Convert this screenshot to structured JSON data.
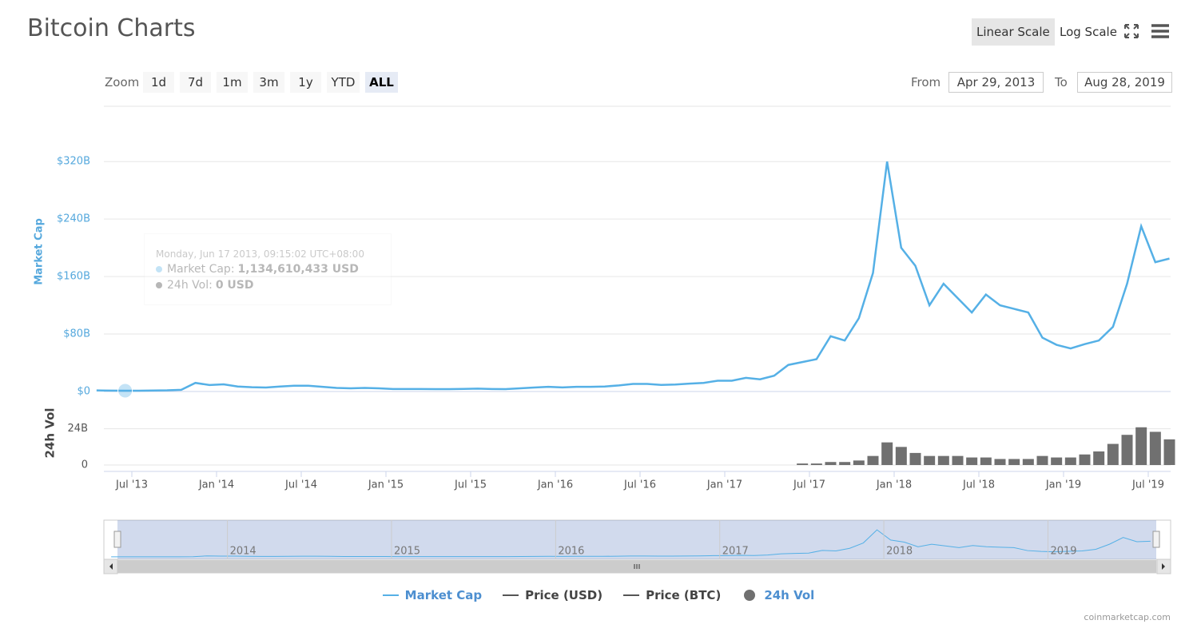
{
  "chart_data": {
    "type": "line",
    "title": "Bitcoin Charts",
    "x": [
      "2013-04",
      "2013-05",
      "2013-06",
      "2013-07",
      "2013-08",
      "2013-09",
      "2013-10",
      "2013-11",
      "2013-12",
      "2014-01",
      "2014-02",
      "2014-03",
      "2014-04",
      "2014-05",
      "2014-06",
      "2014-07",
      "2014-08",
      "2014-09",
      "2014-10",
      "2014-11",
      "2014-12",
      "2015-01",
      "2015-02",
      "2015-03",
      "2015-04",
      "2015-05",
      "2015-06",
      "2015-07",
      "2015-08",
      "2015-09",
      "2015-10",
      "2015-11",
      "2015-12",
      "2016-01",
      "2016-02",
      "2016-03",
      "2016-04",
      "2016-05",
      "2016-06",
      "2016-07",
      "2016-08",
      "2016-09",
      "2016-10",
      "2016-11",
      "2016-12",
      "2017-01",
      "2017-02",
      "2017-03",
      "2017-04",
      "2017-05",
      "2017-06",
      "2017-07",
      "2017-08",
      "2017-09",
      "2017-10",
      "2017-11",
      "2017-12",
      "2018-01",
      "2018-02",
      "2018-03",
      "2018-04",
      "2018-05",
      "2018-06",
      "2018-07",
      "2018-08",
      "2018-09",
      "2018-10",
      "2018-11",
      "2018-12",
      "2019-01",
      "2019-02",
      "2019-03",
      "2019-04",
      "2019-05",
      "2019-06",
      "2019-07",
      "2019-08"
    ],
    "series": [
      {
        "name": "Market Cap",
        "color": "#55b0e6",
        "visible": true,
        "values": [
          1.5,
          1.3,
          1.1,
          1.1,
          1.4,
          1.6,
          2.4,
          12,
          9,
          10,
          7,
          6,
          5.5,
          7,
          8,
          8,
          6.5,
          5,
          4.5,
          5,
          4.5,
          3.5,
          3.5,
          3.5,
          3.3,
          3.4,
          3.6,
          4,
          3.5,
          3.4,
          4.5,
          5.5,
          6.5,
          5.7,
          6.5,
          6.5,
          7,
          8.5,
          10.5,
          10.5,
          9.2,
          9.7,
          11,
          12,
          15,
          15,
          19,
          17,
          22,
          37,
          41,
          45,
          77,
          71,
          102,
          165,
          320,
          200,
          175,
          120,
          150,
          130,
          110,
          135,
          120,
          115,
          110,
          75,
          65,
          60,
          66,
          71,
          90,
          150,
          230,
          180,
          185
        ]
      },
      {
        "name": "Price (USD)",
        "color": "#555555",
        "visible": false
      },
      {
        "name": "Price (BTC)",
        "color": "#555555",
        "visible": false
      },
      {
        "name": "24h Vol",
        "color": "#707070",
        "visible": true,
        "axis": "y2",
        "values": [
          0,
          0,
          0,
          0,
          0,
          0,
          0,
          0,
          0,
          0,
          0,
          0,
          0,
          0,
          0,
          0,
          0,
          0,
          0,
          0,
          0,
          0,
          0,
          0,
          0,
          0,
          0,
          0,
          0,
          0,
          0,
          0,
          0,
          0,
          0,
          0,
          0,
          0,
          0,
          0,
          0,
          0,
          0,
          0,
          0,
          0,
          0,
          0,
          0,
          0,
          1,
          1,
          2,
          2,
          3,
          6,
          15,
          12,
          8,
          6,
          6,
          6,
          5,
          5,
          4,
          4,
          4,
          6,
          5,
          5,
          7,
          9,
          14,
          20,
          25,
          22,
          17
        ]
      }
    ],
    "y_label": "Market Cap",
    "y2_label": "24h Vol",
    "ylim": [
      0,
      397
    ],
    "yticks": [
      {
        "value": 0,
        "label": "$0"
      },
      {
        "value": 80,
        "label": "$80B"
      },
      {
        "value": 160,
        "label": "$160B"
      },
      {
        "value": 240,
        "label": "$240B"
      },
      {
        "value": 320,
        "label": "$320B"
      }
    ],
    "y2lim": [
      0,
      45
    ],
    "y2ticks": [
      0,
      {
        "value": 24,
        "label": "24B"
      }
    ],
    "xticks": [
      {
        "value": "2013-07",
        "label": "Jul '13"
      },
      {
        "value": "2014-01",
        "label": "Jan '14"
      },
      {
        "value": "2014-07",
        "label": "Jul '14"
      },
      {
        "value": "2015-01",
        "label": "Jan '15"
      },
      {
        "value": "2015-07",
        "label": "Jul '15"
      },
      {
        "value": "2016-01",
        "label": "Jan '16"
      },
      {
        "value": "2016-07",
        "label": "Jul '16"
      },
      {
        "value": "2017-01",
        "label": "Jan '17"
      },
      {
        "value": "2017-07",
        "label": "Jul '17"
      },
      {
        "value": "2018-01",
        "label": "Jan '18"
      },
      {
        "value": "2018-07",
        "label": "Jul '18"
      },
      {
        "value": "2019-01",
        "label": "Jan '19"
      },
      {
        "value": "2019-07",
        "label": "Jul '19"
      }
    ],
    "grid": true,
    "navigator": {
      "xticks": [
        2014,
        2015,
        2016,
        2017,
        2018,
        2019
      ]
    },
    "tooltip": {
      "date": "Monday, Jun 17 2013, 09:15:02 UTC+08:00",
      "x": "2013-06-17",
      "value": 1.134610433,
      "items": [
        {
          "label": "Market Cap:",
          "value": "1,134,610,433 USD"
        },
        {
          "label": "24h Vol:",
          "value": "0 USD"
        }
      ]
    }
  },
  "ui": {
    "zoom_label": "Zoom",
    "zoom_buttons": [
      "1d",
      "7d",
      "1m",
      "3m",
      "1y",
      "YTD",
      "ALL"
    ],
    "zoom_selected": 6,
    "scale_buttons": [
      "Linear Scale",
      "Log Scale"
    ],
    "scale_selected": 0,
    "from_label": "From",
    "from": "Apr 29, 2013",
    "to_label": "To",
    "to": "Aug 28, 2019",
    "credit": "coinmarketcap.com"
  }
}
